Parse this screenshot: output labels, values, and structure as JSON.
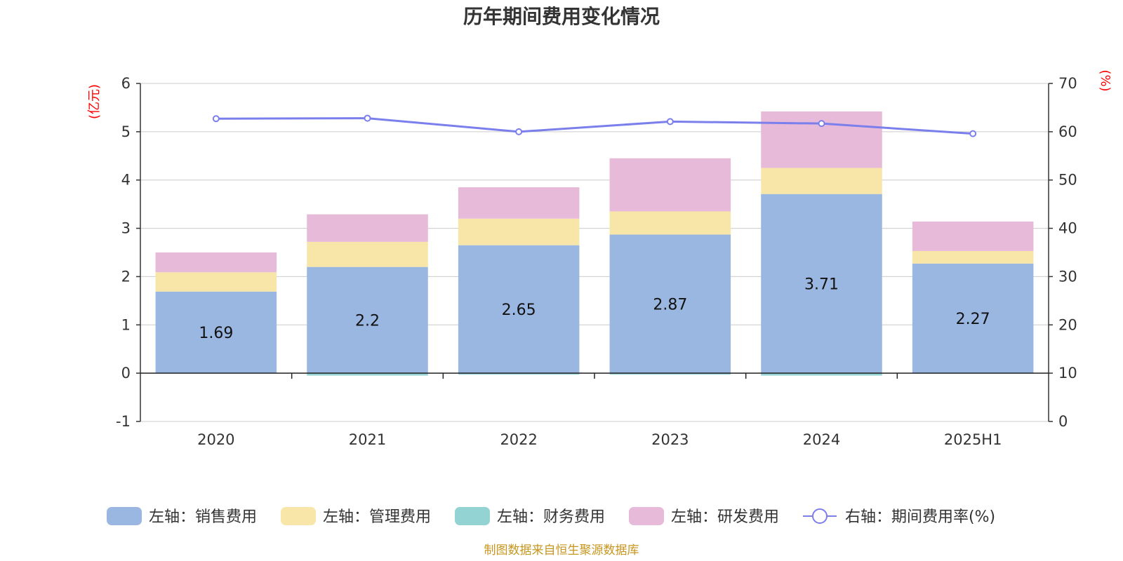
{
  "chart_data": {
    "type": "bar",
    "stacked": true,
    "title": "历年期间费用变化情况",
    "left_axis_unit": "(亿元)",
    "right_axis_unit": "(%)",
    "categories": [
      "2020",
      "2021",
      "2022",
      "2023",
      "2024",
      "2025H1"
    ],
    "left_ylim": [
      -1,
      6
    ],
    "left_yticks": [
      "-1",
      "0",
      "1",
      "2",
      "3",
      "4",
      "5",
      "6"
    ],
    "right_ylim": [
      0,
      70
    ],
    "right_yticks": [
      "0",
      "10",
      "20",
      "30",
      "40",
      "50",
      "60",
      "70"
    ],
    "series": [
      {
        "name": "左轴：销售费用",
        "axis": "left",
        "color": "#9ab7e1",
        "values": [
          1.69,
          2.2,
          2.65,
          2.87,
          3.71,
          2.27
        ],
        "labels": [
          "1.69",
          "2.2",
          "2.65",
          "2.87",
          "3.71",
          "2.27"
        ]
      },
      {
        "name": "左轴：管理费用",
        "axis": "left",
        "color": "#f8e6a8",
        "values": [
          0.4,
          0.52,
          0.55,
          0.48,
          0.54,
          0.26
        ]
      },
      {
        "name": "左轴：财务费用",
        "axis": "left",
        "color": "#94d3d4",
        "values": [
          0.0,
          -0.05,
          -0.03,
          -0.03,
          -0.05,
          -0.01
        ]
      },
      {
        "name": "左轴：研发费用",
        "axis": "left",
        "color": "#e8bad9",
        "values": [
          0.41,
          0.57,
          0.65,
          1.1,
          1.17,
          0.61
        ]
      },
      {
        "name": "右轴：期间费用率(%)",
        "axis": "right",
        "type": "line",
        "color": "#7b7fec",
        "values": [
          62.7,
          62.8,
          60.0,
          62.1,
          61.7,
          59.6
        ]
      }
    ],
    "grid": true,
    "legend_position": "bottom",
    "source_note": "制图数据来自恒生聚源数据库"
  }
}
